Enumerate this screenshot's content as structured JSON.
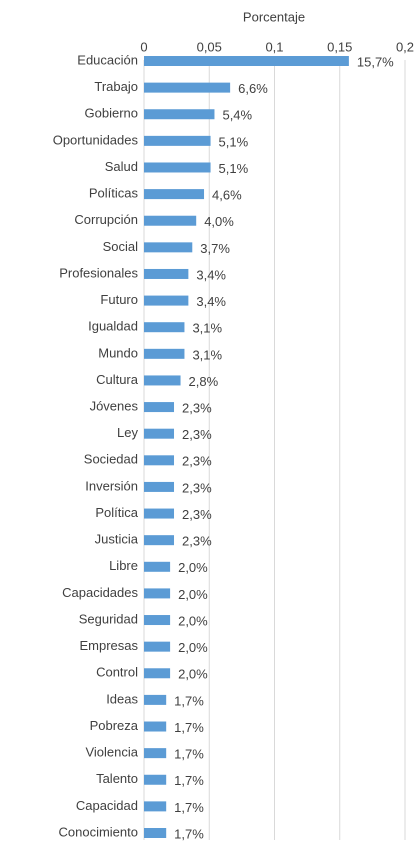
{
  "chart_data": {
    "type": "bar",
    "orientation": "horizontal",
    "x_label": "Porcentaje",
    "categories": [
      "Educación",
      "Trabajo",
      "Gobierno",
      "Oportunidades",
      "Salud",
      "Políticas",
      "Corrupción",
      "Social",
      "Profesionales",
      "Futuro",
      "Igualdad",
      "Mundo",
      "Cultura",
      "Jóvenes",
      "Ley",
      "Sociedad",
      "Inversión",
      "Política",
      "Justicia",
      "Libre",
      "Capacidades",
      "Seguridad",
      "Empresas",
      "Control",
      "Ideas",
      "Pobreza",
      "Violencia",
      "Talento",
      "Capacidad",
      "Conocimiento"
    ],
    "values": [
      0.157,
      0.066,
      0.054,
      0.051,
      0.051,
      0.046,
      0.04,
      0.037,
      0.034,
      0.034,
      0.031,
      0.031,
      0.028,
      0.023,
      0.023,
      0.023,
      0.023,
      0.023,
      0.023,
      0.02,
      0.02,
      0.02,
      0.02,
      0.02,
      0.017,
      0.017,
      0.017,
      0.017,
      0.017,
      0.017
    ],
    "value_labels": [
      "15,7%",
      "6,6%",
      "5,4%",
      "5,1%",
      "5,1%",
      "4,6%",
      "4,0%",
      "3,7%",
      "3,4%",
      "3,4%",
      "3,1%",
      "3,1%",
      "2,8%",
      "2,3%",
      "2,3%",
      "2,3%",
      "2,3%",
      "2,3%",
      "2,3%",
      "2,0%",
      "2,0%",
      "2,0%",
      "2,0%",
      "2,0%",
      "1,7%",
      "1,7%",
      "1,7%",
      "1,7%",
      "1,7%",
      "1,7%"
    ],
    "color": "#5b9bd5",
    "xlim": [
      0,
      0.2
    ],
    "xticks": [
      0,
      {
        "value": 0.05,
        "label": "0,05"
      },
      {
        "value": 0.1,
        "label": "0,1"
      },
      {
        "value": 0.15,
        "label": "0,15"
      },
      {
        "value": 0.2,
        "label": "0,2"
      }
    ],
    "grid": true
  }
}
